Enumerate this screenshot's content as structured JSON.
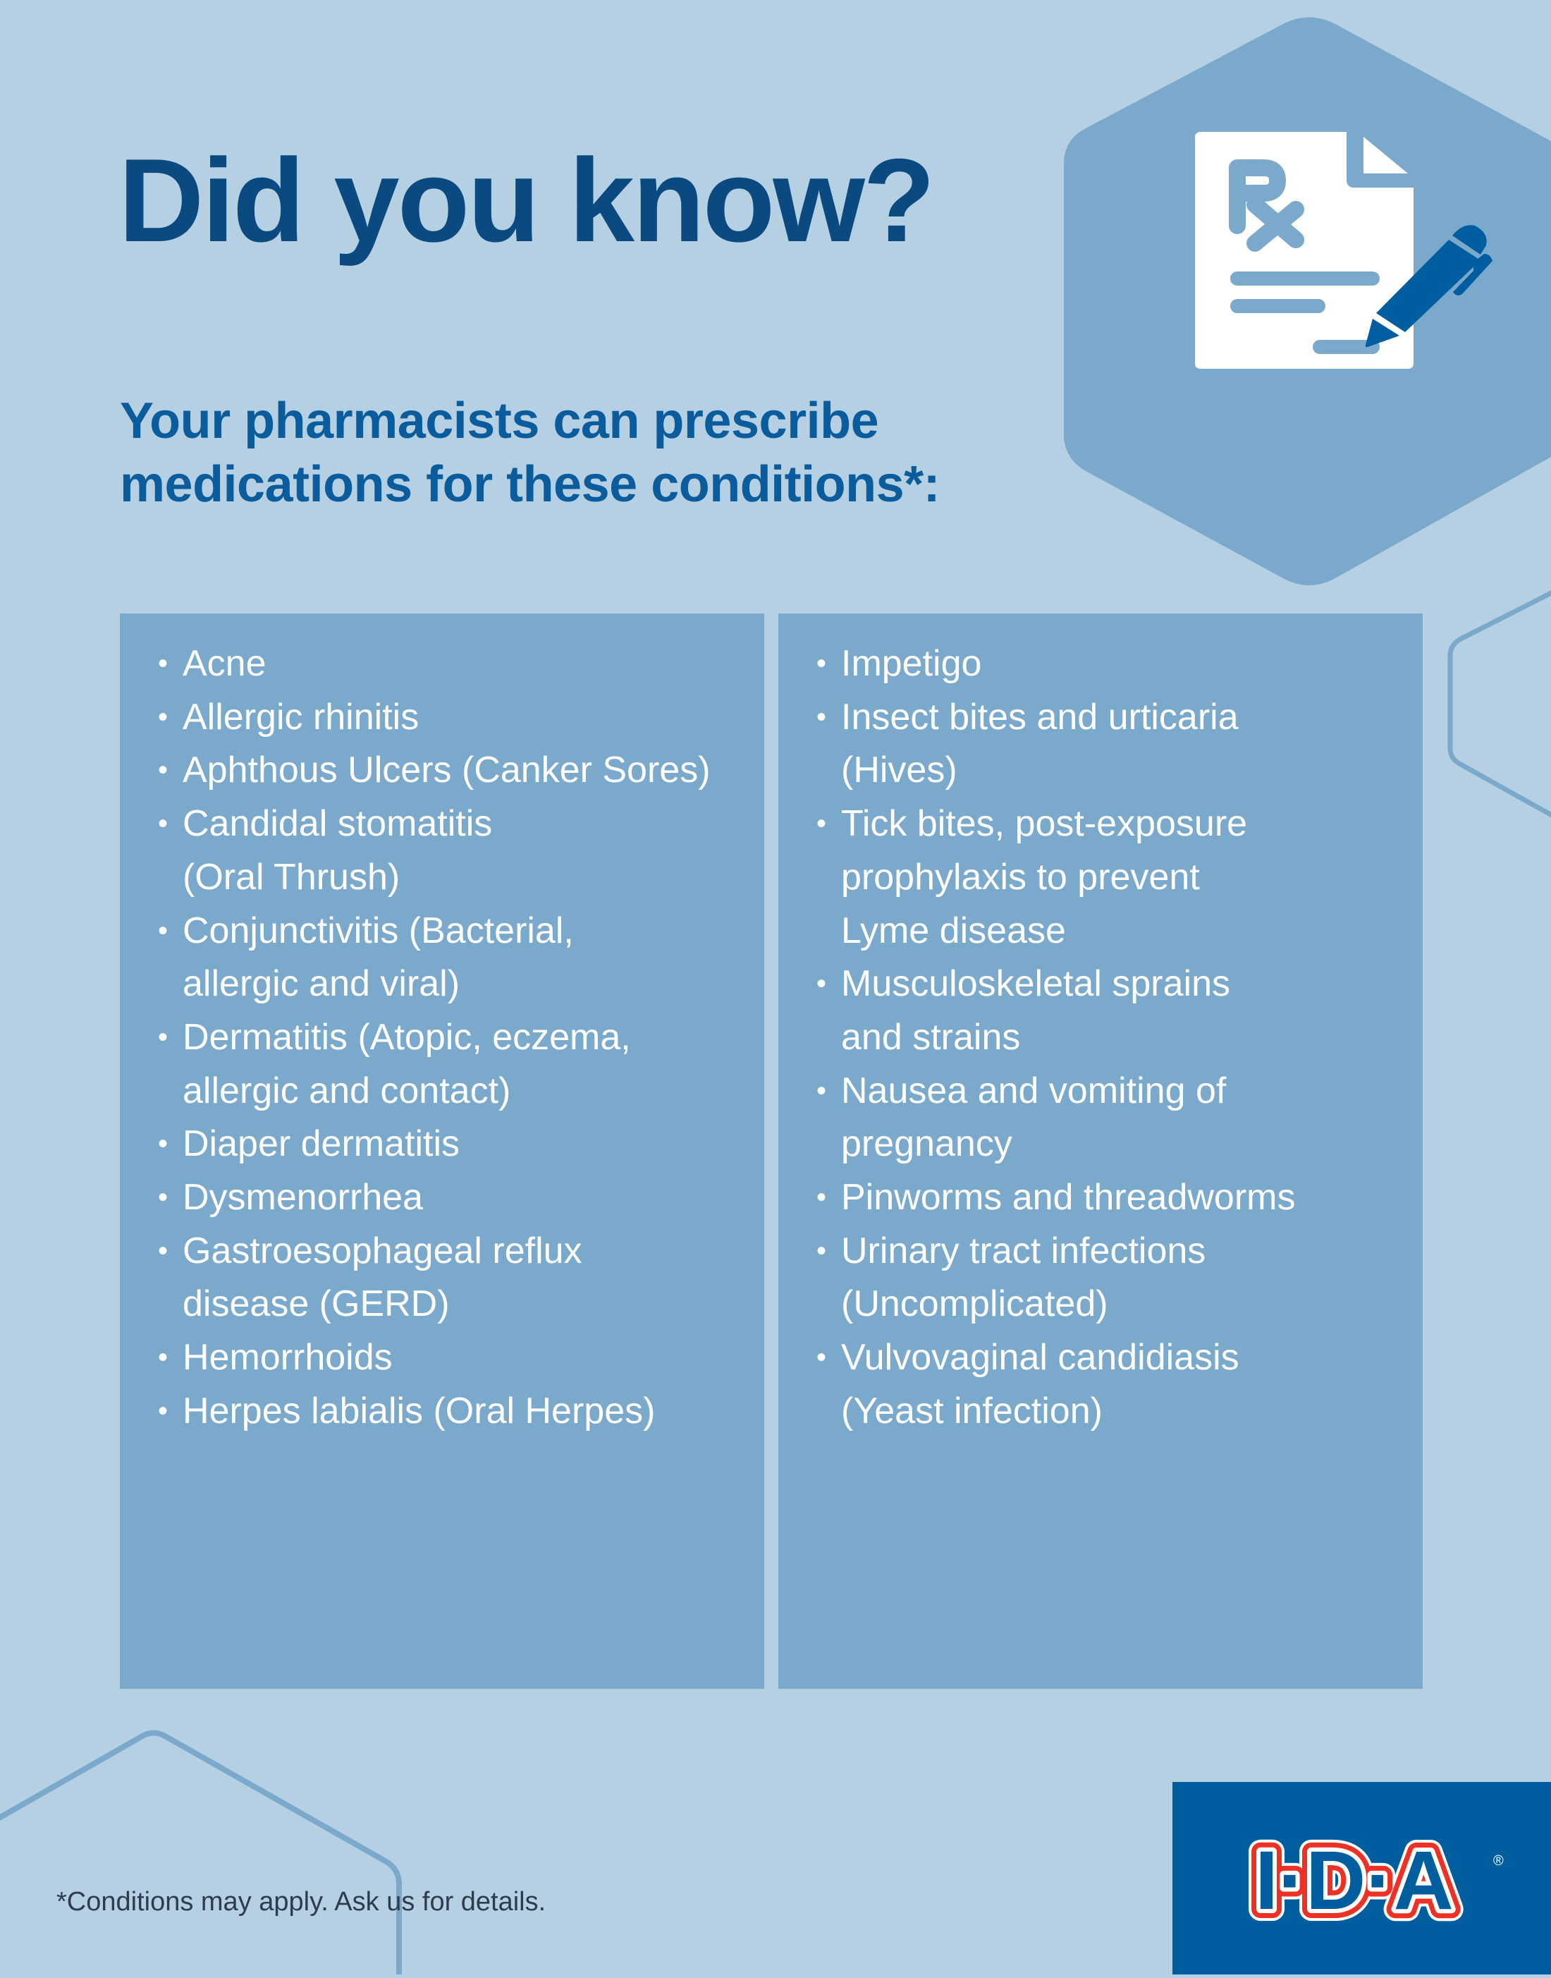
{
  "header": {
    "title": "Did you know?",
    "subtitle_lines": [
      "Your pharmacists can prescribe",
      "medications for these conditions*:"
    ]
  },
  "conditions": {
    "left": [
      {
        "lines": [
          "Acne"
        ]
      },
      {
        "lines": [
          "Allergic rhinitis"
        ]
      },
      {
        "lines": [
          "Aphthous Ulcers (Canker Sores)"
        ]
      },
      {
        "lines": [
          "Candidal stomatitis",
          "(Oral Thrush)"
        ]
      },
      {
        "lines": [
          "Conjunctivitis (Bacterial,",
          "allergic and viral)"
        ]
      },
      {
        "lines": [
          "Dermatitis (Atopic, eczema,",
          "allergic and contact)"
        ]
      },
      {
        "lines": [
          "Diaper dermatitis"
        ]
      },
      {
        "lines": [
          "Dysmenorrhea"
        ]
      },
      {
        "lines": [
          "Gastroesophageal reflux",
          "disease (GERD)"
        ]
      },
      {
        "lines": [
          "Hemorrhoids"
        ]
      },
      {
        "lines": [
          "Herpes labialis (Oral Herpes)"
        ]
      }
    ],
    "right": [
      {
        "lines": [
          "Impetigo"
        ]
      },
      {
        "lines": [
          "Insect bites and urticaria",
          "(Hives)"
        ]
      },
      {
        "lines": [
          "Tick bites, post-exposure",
          "prophylaxis to prevent",
          "Lyme disease"
        ]
      },
      {
        "lines": [
          "Musculoskeletal sprains",
          "and strains"
        ]
      },
      {
        "lines": [
          "Nausea and vomiting of",
          "pregnancy"
        ]
      },
      {
        "lines": [
          "Pinworms and threadworms"
        ]
      },
      {
        "lines": [
          "Urinary tract infections",
          "(Uncomplicated)"
        ]
      },
      {
        "lines": [
          "Vulvovaginal candidiasis",
          "(Yeast infection)"
        ]
      }
    ],
    "bullet": "•"
  },
  "footnote": "*Conditions may apply. Ask us for details.",
  "logo": {
    "text": "I·D·A",
    "registered": "®"
  },
  "icons": {
    "hero": "prescription-document-with-pen-icon"
  },
  "colors": {
    "background": "#b5d0e2",
    "panel": "#7ba9cc",
    "title": "#0b4a80",
    "subtitle": "#0a5c9c",
    "pen": "#005ea0",
    "logo_background": "#005e9e",
    "logo_red": "#ee3124"
  }
}
